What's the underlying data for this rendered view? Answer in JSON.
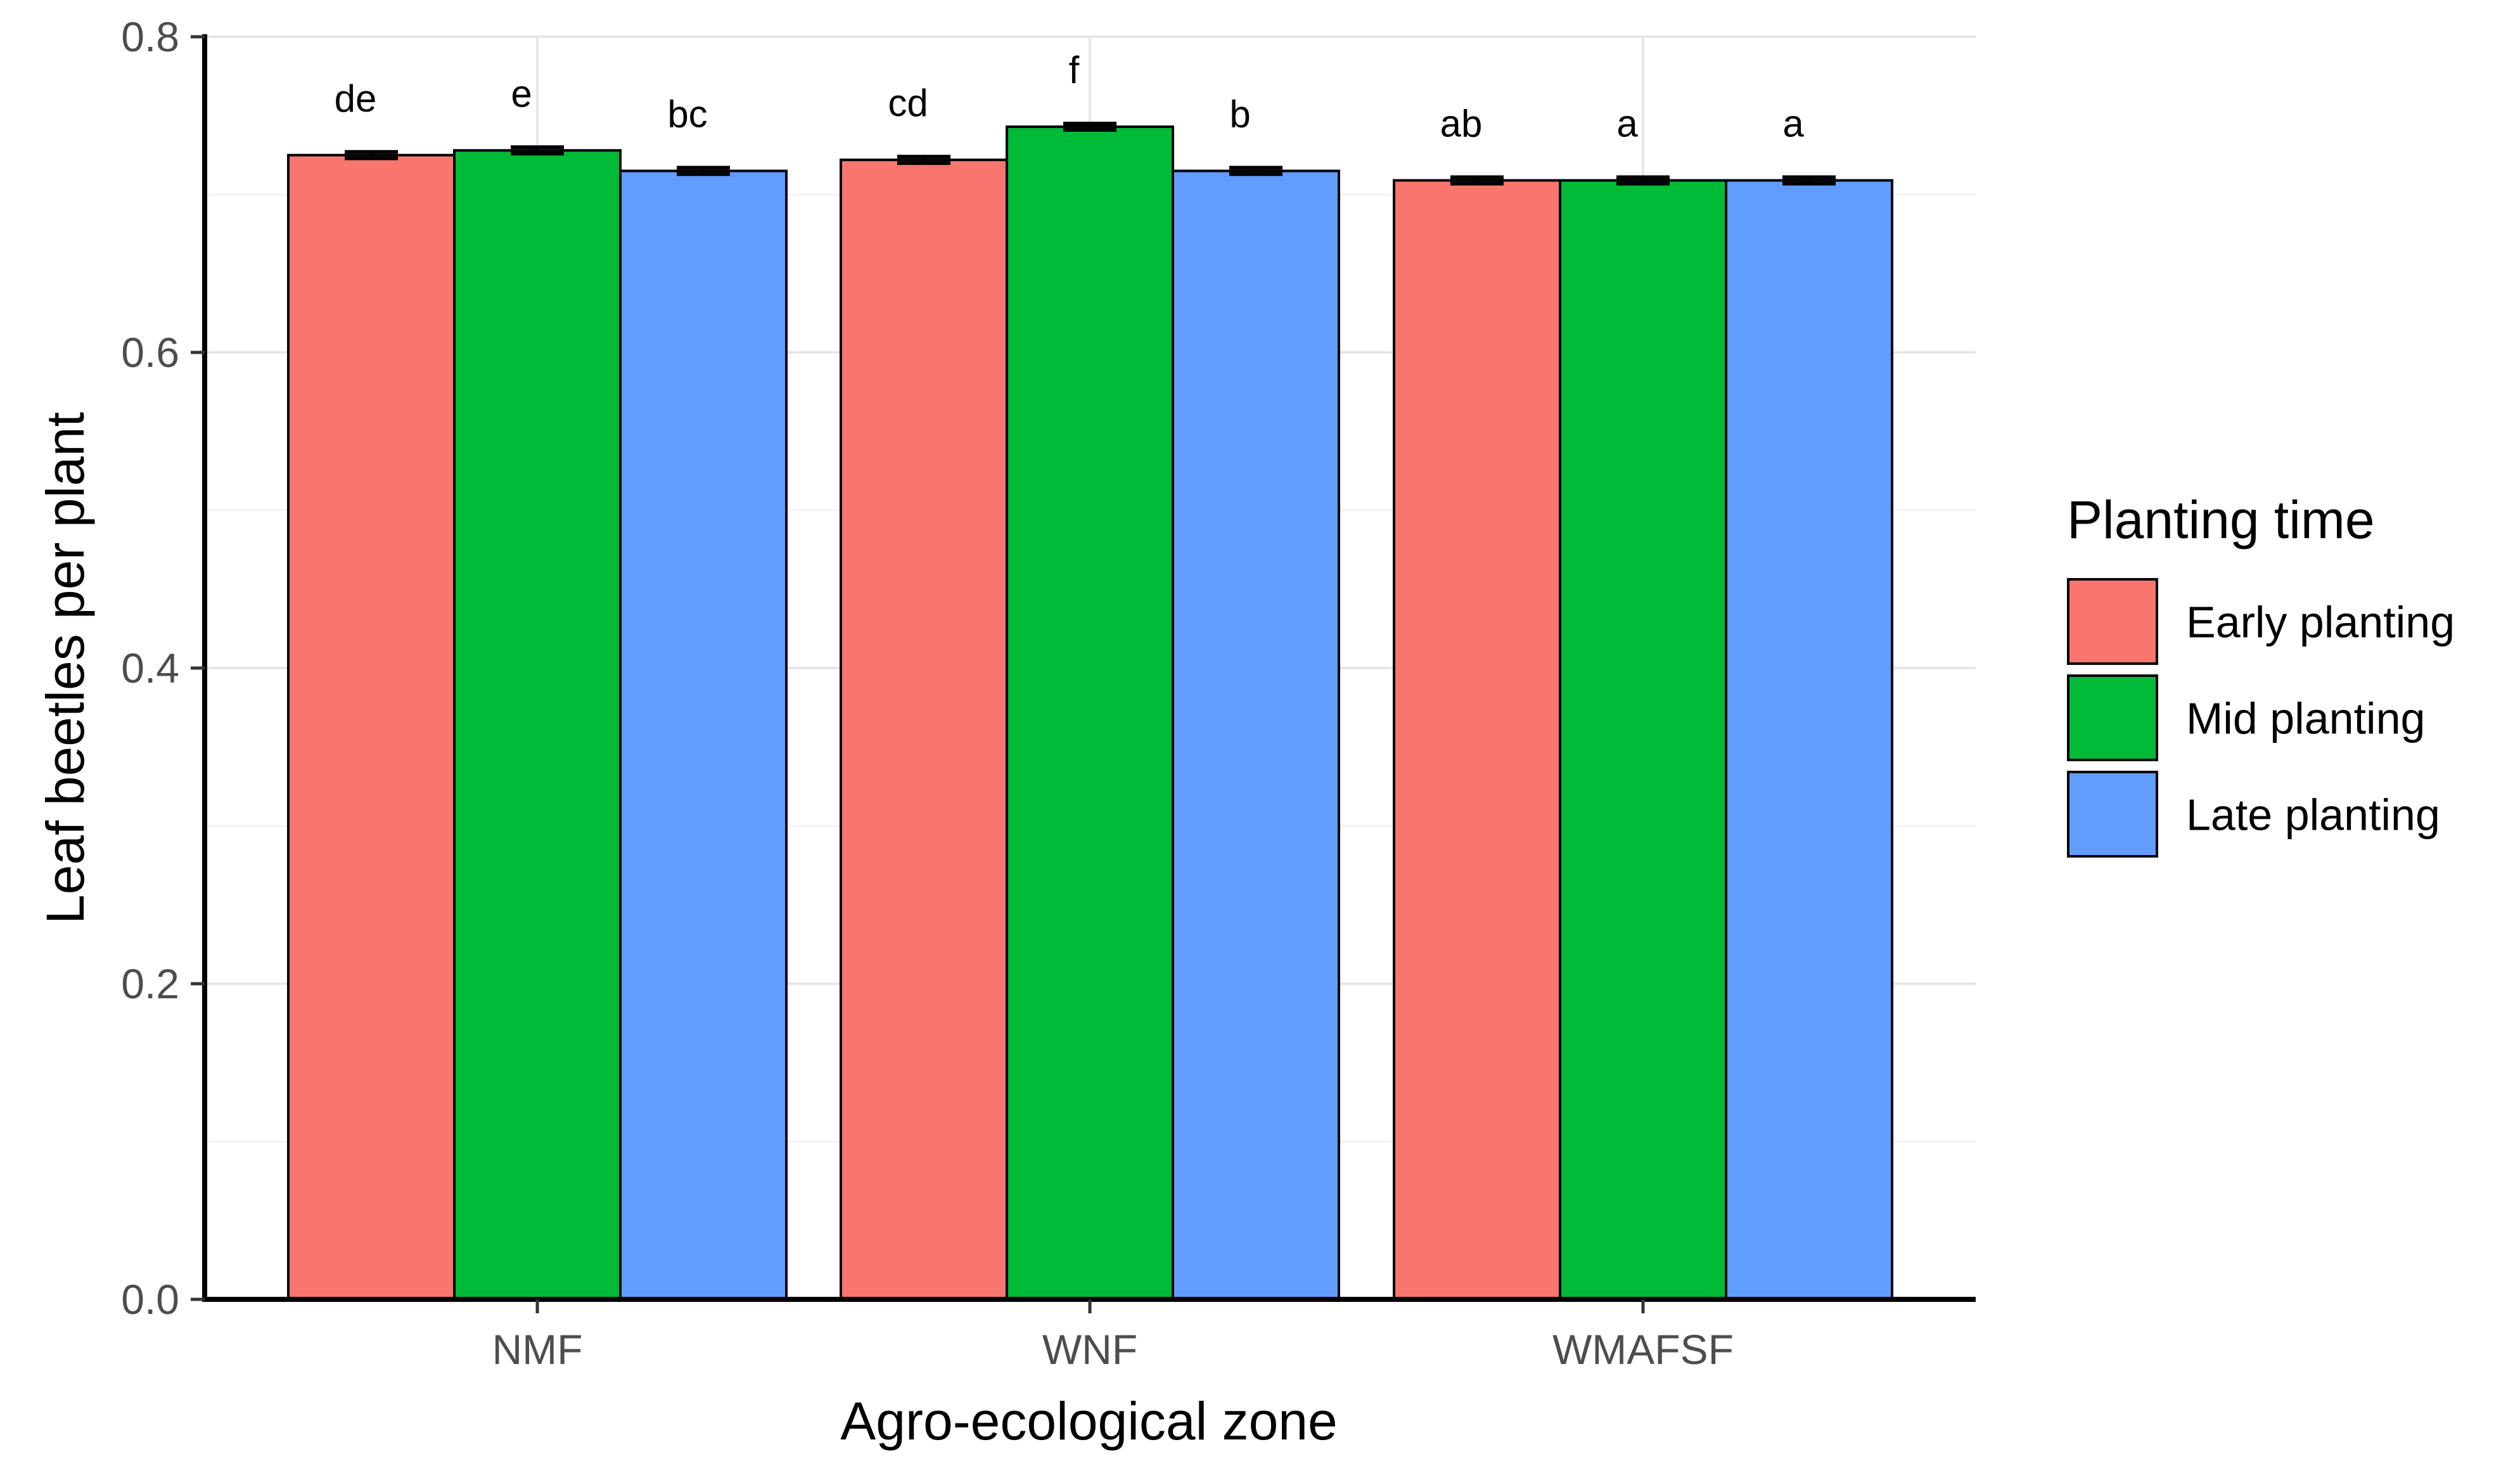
{
  "chart_data": {
    "type": "bar",
    "title": "",
    "xlabel": "Agro-ecological zone",
    "ylabel": "Leaf beetles per plant",
    "categories": [
      "NMF",
      "WNF",
      "WMAFSF"
    ],
    "ylim": [
      0,
      0.8
    ],
    "y_ticks": [
      "0.0",
      "0.2",
      "0.4",
      "0.6",
      "0.8"
    ],
    "y_tick_values": [
      0,
      0.2,
      0.4,
      0.6,
      0.8
    ],
    "grid": true,
    "legend": {
      "title": "Planting time",
      "placement": "right"
    },
    "series": [
      {
        "name": "Early planting",
        "color": "#F8766D",
        "values": [
          0.725,
          0.722,
          0.709
        ],
        "errors": [
          0.002,
          0.002,
          0.002
        ],
        "labels": [
          "de",
          "cd",
          "ab"
        ]
      },
      {
        "name": "Mid planting",
        "color": "#00BA38",
        "values": [
          0.728,
          0.743,
          0.709
        ],
        "errors": [
          0.002,
          0.002,
          0.002
        ],
        "labels": [
          "e",
          "f",
          "a"
        ]
      },
      {
        "name": "Late planting",
        "color": "#619CFF",
        "values": [
          0.715,
          0.715,
          0.709
        ],
        "errors": [
          0.002,
          0.002,
          0.002
        ],
        "labels": [
          "bc",
          "b",
          "a"
        ]
      }
    ]
  }
}
